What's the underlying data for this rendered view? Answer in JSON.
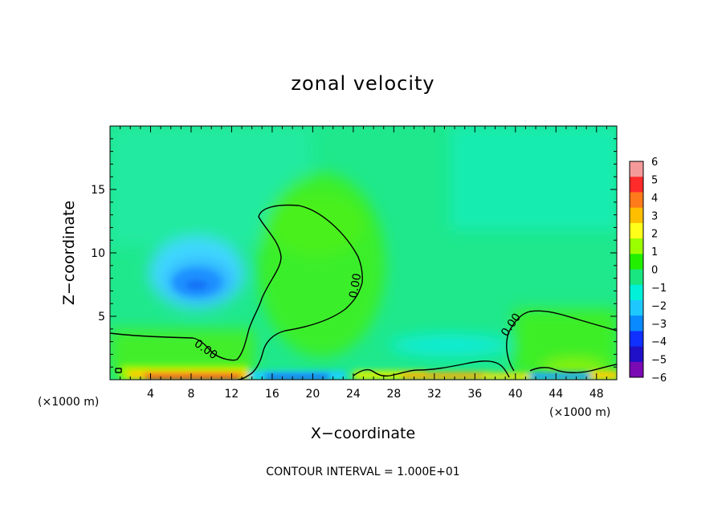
{
  "chart_data": {
    "type": "heatmap",
    "title": "zonal velocity",
    "xlabel": "X−coordinate",
    "ylabel": "Z−coordinate",
    "x_unit_left": "(×1000 m)",
    "x_unit_right": "(×1000 m)",
    "footer": "CONTOUR INTERVAL = 1.000E+01",
    "contour_label": "0.00",
    "xlim": [
      0,
      50
    ],
    "ylim": [
      0,
      20
    ],
    "xticks": [
      "4",
      "8",
      "12",
      "16",
      "20",
      "24",
      "28",
      "32",
      "36",
      "40",
      "44",
      "48"
    ],
    "yticks": [
      "5",
      "10",
      "15"
    ],
    "colorbar": {
      "range": [
        -6,
        6
      ],
      "ticks": [
        "6",
        "5",
        "4",
        "3",
        "2",
        "1",
        "0",
        "−1",
        "−2",
        "−3",
        "−4",
        "−5",
        "−6"
      ],
      "colors": [
        "#f49a9a",
        "#ff2a2a",
        "#ff7a1a",
        "#ffbf00",
        "#ffff1a",
        "#9cff00",
        "#22ee00",
        "#19e680",
        "#00f0d8",
        "#1ec8ff",
        "#0a8aff",
        "#1030ff",
        "#2010c8",
        "#7a0ab4"
      ]
    },
    "anomalies": [
      {
        "label": "blue low (cold core)",
        "x": 8.5,
        "z": 7.5,
        "value": -3.2
      },
      {
        "label": "upward green bulge",
        "x": 19,
        "z": 9,
        "value": 1.2
      },
      {
        "label": "near-surface red band",
        "x": 9,
        "z": 0.3,
        "value": 5
      },
      {
        "label": "near-surface orange band",
        "x": 34,
        "z": 0.3,
        "value": 3.5
      },
      {
        "label": "near-surface blue",
        "x": 19,
        "z": 0.3,
        "value": -3.5
      },
      {
        "label": "near-surface cyan",
        "x": 34,
        "z": 2.2,
        "value": -1.8
      }
    ]
  }
}
